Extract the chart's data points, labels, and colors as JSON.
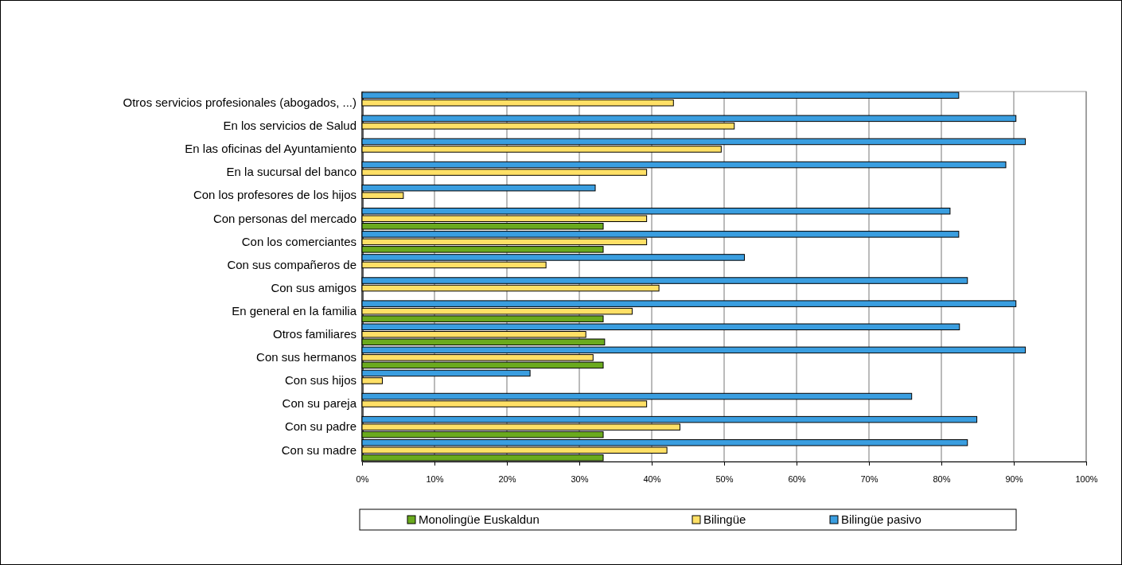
{
  "chart_data": {
    "type": "bar",
    "orientation": "horizontal",
    "categories": [
      "Otros servicios profesionales (abogados, ...)",
      "En los servicios de Salud",
      "En las oficinas del Ayuntamiento",
      "En la sucursal del banco",
      "Con los profesores de los hijos",
      "Con personas del mercado",
      "Con los comerciantes",
      "Con sus compañeros de",
      "Con sus amigos",
      "En general en la familia",
      "Otros familiares",
      "Con sus hermanos",
      "Con sus hijos",
      "Con su pareja",
      "Con su padre",
      "Con su madre"
    ],
    "series": [
      {
        "name": "Monolingüe Euskaldun",
        "color": "#6aaa1e",
        "values": [
          0,
          0,
          0,
          0,
          0,
          33.3,
          33.3,
          0,
          0,
          33.3,
          33.5,
          33.3,
          0,
          0,
          33.3,
          33.3
        ]
      },
      {
        "name": "Bilingüe",
        "color": "#ffe066",
        "values": [
          43.0,
          51.4,
          49.6,
          39.3,
          5.7,
          39.3,
          39.3,
          25.4,
          41.0,
          37.3,
          30.9,
          31.9,
          2.8,
          39.3,
          43.9,
          42.1
        ]
      },
      {
        "name": "Bilingüe pasivo",
        "color": "#3a9ee0",
        "values": [
          82.4,
          90.3,
          91.6,
          88.9,
          32.2,
          81.2,
          82.4,
          52.8,
          83.6,
          90.3,
          82.5,
          91.6,
          23.2,
          75.9,
          84.9,
          83.6
        ]
      }
    ],
    "xlim": [
      0,
      100
    ],
    "xticks": [
      {
        "value": 0,
        "label": "0%"
      },
      {
        "value": 10,
        "label": "10%"
      },
      {
        "value": 20,
        "label": "20%"
      },
      {
        "value": 30,
        "label": "30%"
      },
      {
        "value": 40,
        "label": "40%"
      },
      {
        "value": 50,
        "label": "50%"
      },
      {
        "value": 60,
        "label": "60%"
      },
      {
        "value": 70,
        "label": "70%"
      },
      {
        "value": 80,
        "label": "80%"
      },
      {
        "value": 90,
        "label": "90%"
      },
      {
        "value": 100,
        "label": "100%"
      }
    ],
    "grid": "x",
    "legend": "bottom"
  }
}
